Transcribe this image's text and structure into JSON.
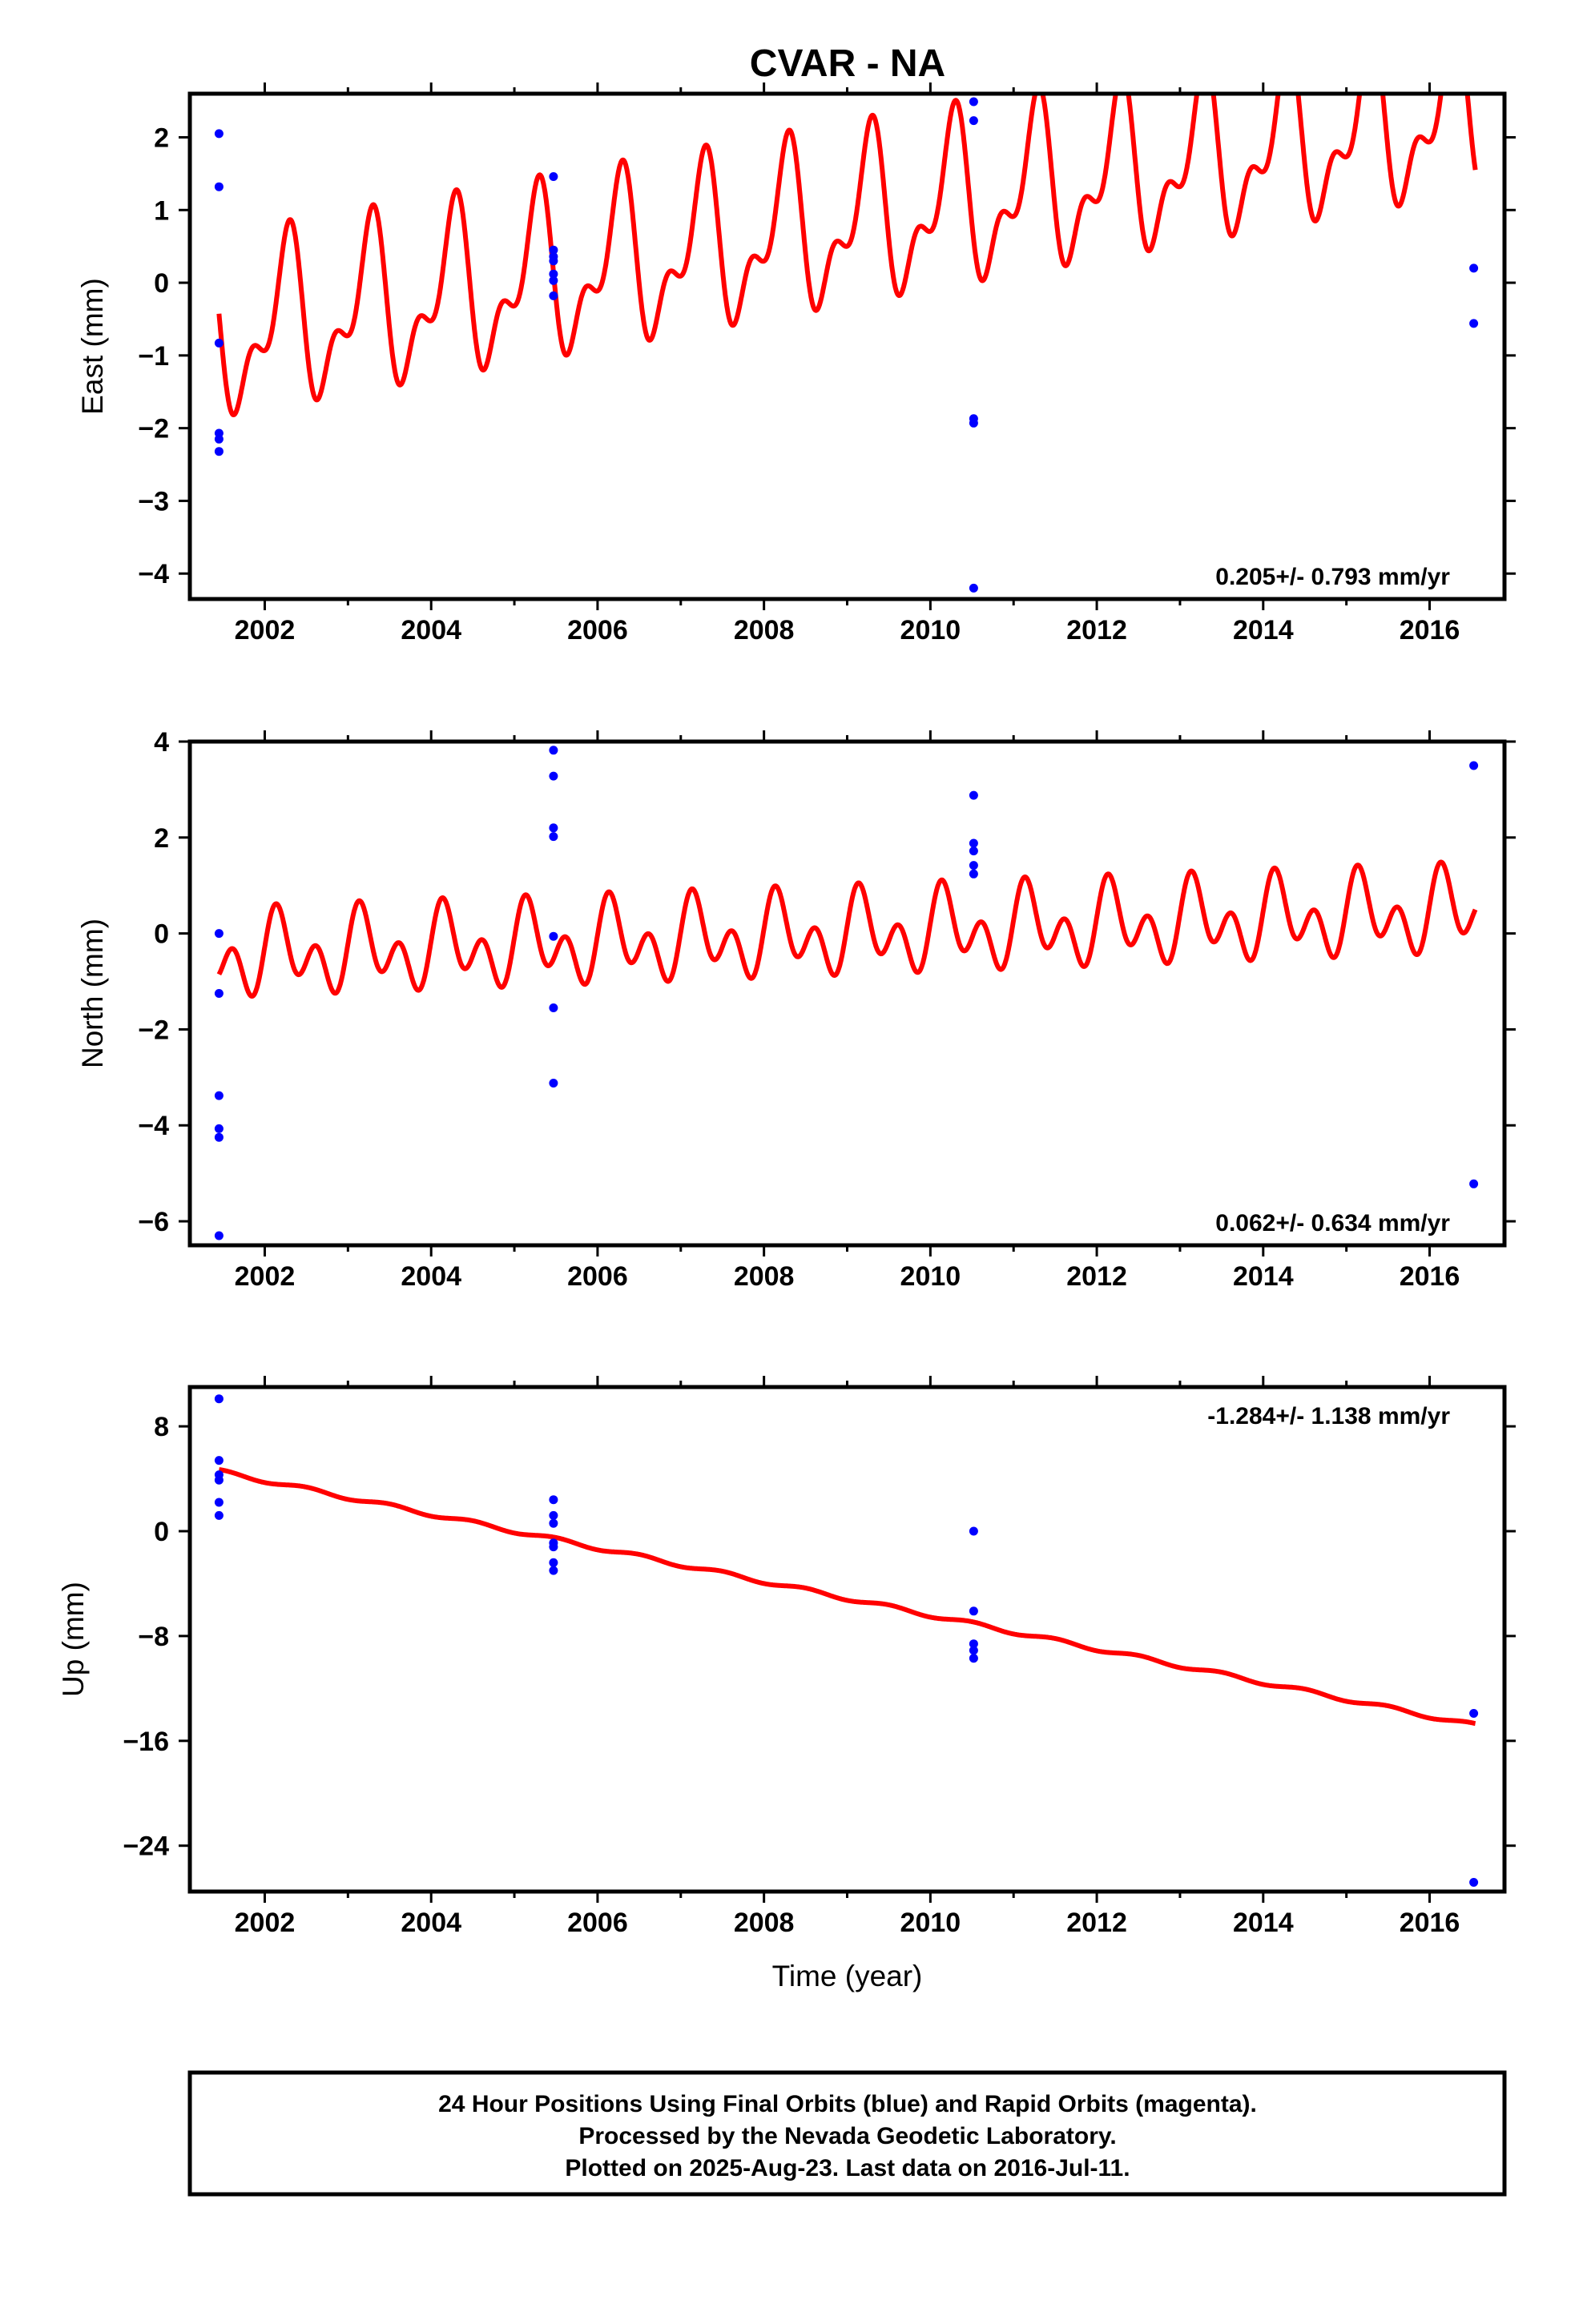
{
  "title": "CVAR - NA",
  "colors": {
    "model": "#ff0000",
    "points": "#0000ff",
    "frame": "#000000"
  },
  "chart_data": [
    {
      "type": "scatter",
      "panel": "east",
      "ylabel": "East (mm)",
      "xlabel": "",
      "xlim": [
        2001.1,
        2016.9
      ],
      "ylim": [
        -4.35,
        2.6
      ],
      "xticks": [
        2002,
        2004,
        2006,
        2008,
        2010,
        2012,
        2014,
        2016
      ],
      "xtick_labels": [
        "2002",
        "2004",
        "2006",
        "2008",
        "2010",
        "2012",
        "2014",
        "2016"
      ],
      "yticks": [
        -4,
        -3,
        -2,
        -1,
        0,
        1,
        2
      ],
      "ytick_labels": [
        "−4",
        "−3",
        "−2",
        "−1",
        "0",
        "1",
        "2"
      ],
      "rate_text": "0.205+/- 0.793 mm/yr",
      "rate_position": "bottom-right",
      "points": {
        "x": [
          2001.45,
          2001.45,
          2001.45,
          2001.45,
          2001.45,
          2001.45,
          2005.47,
          2005.47,
          2005.47,
          2005.47,
          2005.47,
          2005.47,
          2005.47,
          2010.52,
          2010.52,
          2010.52,
          2010.52,
          2010.52,
          2016.53,
          2016.53
        ],
        "y": [
          2.05,
          1.32,
          -0.83,
          -2.07,
          -2.15,
          -2.32,
          1.46,
          0.45,
          0.36,
          0.12,
          0.03,
          -0.18,
          0.3,
          2.49,
          2.23,
          -1.87,
          -1.93,
          -4.2,
          0.2,
          -0.56
        ]
      },
      "model": {
        "x0": 2001.5,
        "y0": -0.72,
        "trend": 0.205,
        "annual": {
          "amplitude": 0.95,
          "phase_deg": 180
        },
        "semiannual": {
          "amplitude": 0.55,
          "phase_deg": 215
        },
        "xrange": [
          2001.45,
          2016.55
        ]
      }
    },
    {
      "type": "scatter",
      "panel": "north",
      "ylabel": "North (mm)",
      "xlabel": "",
      "xlim": [
        2001.1,
        2016.9
      ],
      "ylim": [
        -6.5,
        4.0
      ],
      "xticks": [
        2002,
        2004,
        2006,
        2008,
        2010,
        2012,
        2014,
        2016
      ],
      "xtick_labels": [
        "2002",
        "2004",
        "2006",
        "2008",
        "2010",
        "2012",
        "2014",
        "2016"
      ],
      "yticks": [
        -6,
        -4,
        -2,
        0,
        2,
        4
      ],
      "ytick_labels": [
        "−6",
        "−4",
        "−2",
        "0",
        "2",
        "4"
      ],
      "rate_text": "0.062+/- 0.634 mm/yr",
      "rate_position": "bottom-right",
      "points": {
        "x": [
          2001.45,
          2001.45,
          2001.45,
          2001.45,
          2001.45,
          2001.45,
          2005.47,
          2005.47,
          2005.47,
          2005.47,
          2005.47,
          2005.47,
          2005.47,
          2010.52,
          2010.52,
          2010.52,
          2010.52,
          2010.52,
          2016.53,
          2016.53
        ],
        "y": [
          0.0,
          -1.25,
          -3.38,
          -4.07,
          -4.25,
          -6.3,
          3.82,
          3.28,
          2.2,
          2.02,
          -0.06,
          -1.55,
          -3.12,
          2.88,
          1.88,
          1.72,
          1.42,
          1.24,
          3.5,
          -5.22
        ]
      },
      "model": {
        "x0": 2001.5,
        "y0": -0.48,
        "trend": 0.062,
        "annual": {
          "amplitude": 0.5,
          "phase_deg": 200
        },
        "semiannual": {
          "amplitude": 0.6,
          "phase_deg": 0
        },
        "xrange": [
          2001.45,
          2016.55
        ]
      }
    },
    {
      "type": "scatter",
      "panel": "up",
      "ylabel": "Up (mm)",
      "xlabel": "Time (year)",
      "xlim": [
        2001.1,
        2016.9
      ],
      "ylim": [
        -27.5,
        11.0
      ],
      "xticks": [
        2002,
        2004,
        2006,
        2008,
        2010,
        2012,
        2014,
        2016
      ],
      "xtick_labels": [
        "2002",
        "2004",
        "2006",
        "2008",
        "2010",
        "2012",
        "2014",
        "2016"
      ],
      "yticks": [
        -24,
        -16,
        -8,
        0,
        8
      ],
      "ytick_labels": [
        "−24",
        "−16",
        "−8",
        "0",
        "8"
      ],
      "rate_text": "-1.284+/- 1.138 mm/yr",
      "rate_position": "top-right",
      "points": {
        "x": [
          2001.45,
          2001.45,
          2001.45,
          2001.45,
          2001.45,
          2001.45,
          2005.47,
          2005.47,
          2005.47,
          2005.47,
          2005.47,
          2005.47,
          2005.47,
          2010.52,
          2010.52,
          2010.52,
          2010.52,
          2010.52,
          2016.53,
          2016.53
        ],
        "y": [
          10.1,
          5.4,
          4.3,
          3.9,
          2.2,
          1.2,
          2.4,
          1.2,
          0.6,
          -0.9,
          -2.4,
          -3.0,
          -1.2,
          0.0,
          -6.1,
          -8.6,
          -9.1,
          -9.7,
          -13.9,
          -26.8
        ]
      },
      "model": {
        "x0": 2001.5,
        "y0": 4.5,
        "trend": -1.284,
        "annual": {
          "amplitude": 0.15,
          "phase_deg": 90
        },
        "semiannual": {
          "amplitude": 0.0,
          "phase_deg": 0
        },
        "xrange": [
          2001.45,
          2016.55
        ]
      }
    }
  ],
  "footer": {
    "lines": [
      "24 Hour Positions Using Final Orbits (blue) and Rapid Orbits (magenta).",
      "Processed by the Nevada Geodetic Laboratory.",
      "Plotted on 2025-Aug-23. Last data on 2016-Jul-11."
    ]
  }
}
